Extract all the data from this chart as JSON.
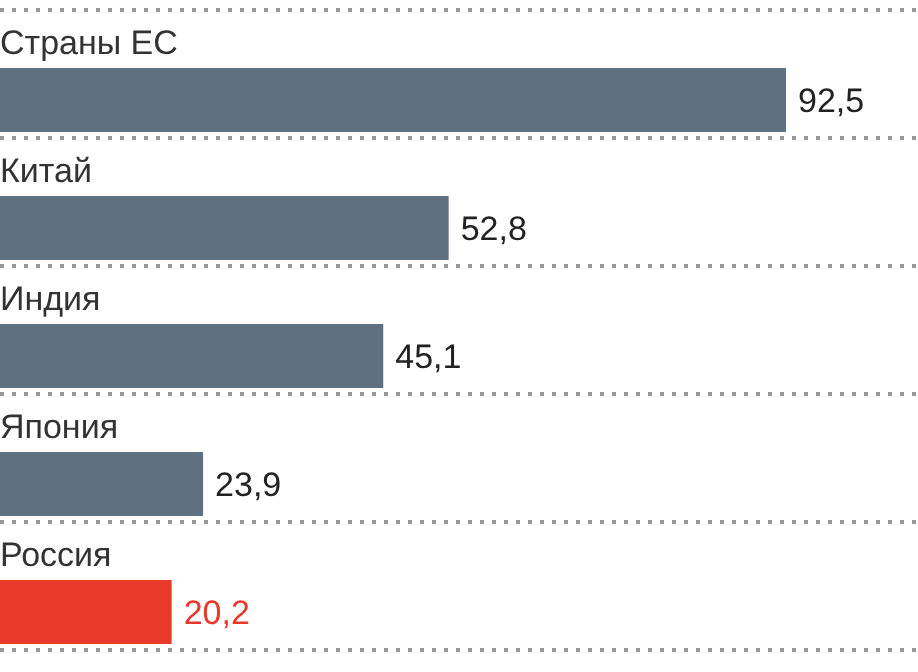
{
  "chart_data": {
    "type": "bar",
    "orientation": "horizontal",
    "categories": [
      "Страны ЕС",
      "Китай",
      "Индия",
      "Япония",
      "Россия"
    ],
    "values": [
      92.5,
      52.8,
      45.1,
      23.9,
      20.2
    ],
    "colors": [
      "#5e6f7f",
      "#5e6f7f",
      "#5e6f7f",
      "#5e6f7f",
      "#e8392b"
    ],
    "value_labels": [
      "92,5",
      "52,8",
      "45,1",
      "23,9",
      "20,2"
    ]
  }
}
